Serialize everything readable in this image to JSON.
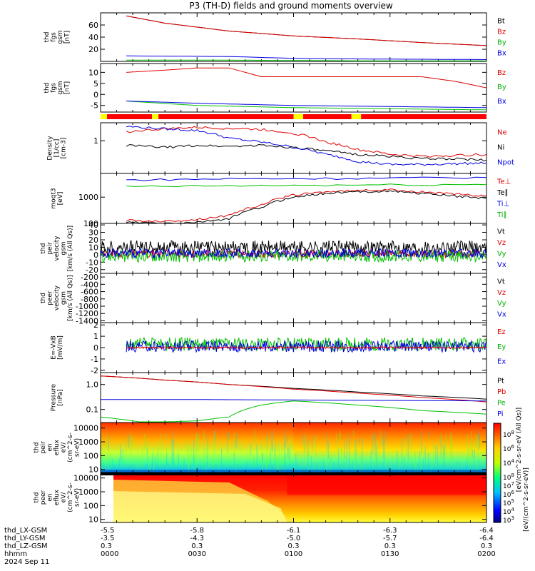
{
  "title": "P3 (TH-D) fields and ground moments overview",
  "chart_data": [
    {
      "type": "line",
      "panel": "fgs-gsm",
      "ylabel": [
        "thd",
        "fgs",
        "gsm",
        "[nT]"
      ],
      "yticks": [
        "20",
        "40",
        "60"
      ],
      "ylim": [
        0,
        80
      ],
      "legend_placement": "right",
      "legend": [
        "Bt",
        "Bz",
        "By",
        "Bx"
      ],
      "series": [
        {
          "name": "Bt",
          "color": "#000000",
          "x": [
            8,
            20,
            40,
            60,
            80,
            100,
            120
          ],
          "y": [
            75,
            63,
            50,
            42,
            37,
            31,
            26
          ]
        },
        {
          "name": "Bz",
          "color": "#e00000",
          "x": [
            8,
            20,
            40,
            60,
            80,
            100,
            120
          ],
          "y": [
            75,
            63,
            50,
            42,
            37,
            31,
            26
          ]
        },
        {
          "name": "By",
          "color": "#00c000",
          "x": [
            8,
            40,
            80,
            120
          ],
          "y": [
            2,
            2,
            1,
            1
          ]
        },
        {
          "name": "Bx",
          "color": "#0000e0",
          "x": [
            8,
            40,
            60,
            80,
            120
          ],
          "y": [
            9,
            8,
            5,
            4,
            3
          ]
        }
      ]
    },
    {
      "type": "line",
      "panel": "fgs-gsm-zoom",
      "ylabel": [
        "thd",
        "fgs",
        "gsm",
        "[nT]"
      ],
      "yticks": [
        "-5",
        "0",
        "5",
        "10"
      ],
      "ylim": [
        -8,
        14
      ],
      "legend_placement": "right",
      "legend": [
        "Bz",
        "By",
        "Bx"
      ],
      "series": [
        {
          "name": "Bz",
          "color": "#e00000",
          "x": [
            8,
            20,
            30,
            40,
            50,
            60,
            80,
            100,
            110,
            120
          ],
          "y": [
            10,
            11,
            12,
            12,
            8,
            8,
            8,
            8,
            6,
            3
          ]
        },
        {
          "name": "By",
          "color": "#00c000",
          "x": [
            8,
            30,
            60,
            90,
            120
          ],
          "y": [
            -3,
            -5,
            -6,
            -6.5,
            -7
          ]
        },
        {
          "name": "Bx",
          "color": "#0000e0",
          "x": [
            8,
            30,
            60,
            90,
            120
          ],
          "y": [
            -3,
            -4,
            -5,
            -5.5,
            -6
          ]
        }
      ]
    },
    {
      "type": "line",
      "panel": "density",
      "ylabel": [
        "Density",
        "[1/cc]",
        "[cm-3]"
      ],
      "yticks": [
        "1"
      ],
      "scale": "log",
      "ylim": [
        0.08,
        4
      ],
      "legend_placement": "right",
      "legend": [
        "Ne",
        "Ni",
        "Npot"
      ],
      "series": [
        {
          "name": "Ne",
          "color": "#e00000",
          "x": [
            8,
            20,
            30,
            40,
            50,
            60,
            70,
            80,
            90,
            100,
            110,
            120
          ],
          "y": [
            2.0,
            2.5,
            2.8,
            2.6,
            2.4,
            1.8,
            0.9,
            0.5,
            0.35,
            0.3,
            0.32,
            0.35
          ]
        },
        {
          "name": "Ni",
          "color": "#000000",
          "x": [
            8,
            20,
            30,
            40,
            50,
            60,
            70,
            80,
            90,
            100,
            110,
            120
          ],
          "y": [
            0.7,
            0.6,
            0.7,
            0.65,
            0.7,
            0.6,
            0.45,
            0.35,
            0.3,
            0.25,
            0.25,
            0.22
          ]
        },
        {
          "name": "Npot",
          "color": "#0000e0",
          "x": [
            8,
            20,
            30,
            40,
            50,
            60,
            70,
            80,
            90,
            100,
            110,
            120
          ],
          "y": [
            3.0,
            2.5,
            2.2,
            1.2,
            0.9,
            0.6,
            0.35,
            0.2,
            0.16,
            0.16,
            0.17,
            0.18
          ]
        }
      ]
    },
    {
      "type": "line",
      "panel": "temperature",
      "ylabel": [
        "moqt3",
        "[eV]"
      ],
      "yticks": [
        "100",
        "1000"
      ],
      "scale": "log",
      "ylim": [
        100,
        8000
      ],
      "legend_placement": "right",
      "legend": [
        "Te⊥",
        "Te∥",
        "Ti⊥",
        "Ti∥"
      ],
      "series": [
        {
          "name": "Te⊥",
          "color": "#e00000",
          "x": [
            8,
            20,
            30,
            40,
            50,
            60,
            70,
            80,
            90,
            100,
            110,
            120
          ],
          "y": [
            130,
            120,
            140,
            200,
            500,
            1200,
            1600,
            1800,
            1900,
            1600,
            1300,
            1100
          ]
        },
        {
          "name": "Te∥",
          "color": "#000000",
          "x": [
            8,
            20,
            30,
            40,
            50,
            60,
            70,
            80,
            90,
            100,
            110,
            120
          ],
          "y": [
            110,
            100,
            110,
            150,
            400,
            1000,
            1400,
            1600,
            1700,
            1400,
            1100,
            900
          ]
        },
        {
          "name": "Ti⊥",
          "color": "#0000e0",
          "x": [
            8,
            40,
            80,
            120
          ],
          "y": [
            4500,
            5000,
            5200,
            5600
          ]
        },
        {
          "name": "Ti∥",
          "color": "#00c000",
          "x": [
            8,
            40,
            80,
            120
          ],
          "y": [
            2500,
            2700,
            2900,
            3000
          ]
        }
      ]
    },
    {
      "type": "line",
      "panel": "ion-velocity",
      "ylabel": [
        "thd",
        "peir",
        "velocity",
        "gsm",
        "[km/s (All Qs)]"
      ],
      "yticks": [
        "-20",
        "-10",
        "0",
        "10",
        "20",
        "30",
        "40"
      ],
      "ylim": [
        -25,
        42
      ],
      "legend_placement": "right",
      "legend": [
        "Vt",
        "Vz",
        "Vy",
        "Vx"
      ],
      "series": [
        {
          "name": "Vt",
          "color": "#000000",
          "mean": 10,
          "noise": 9
        },
        {
          "name": "Vz",
          "color": "#e00000",
          "mean": 1,
          "noise": 5
        },
        {
          "name": "Vy",
          "color": "#00c000",
          "mean": -2,
          "noise": 8
        },
        {
          "name": "Vx",
          "color": "#0000e0",
          "mean": 2,
          "noise": 6
        }
      ]
    },
    {
      "type": "line",
      "panel": "electron-velocity",
      "ylabel": [
        "thd",
        "peer",
        "velocity",
        "gsm",
        "[km/s (All Qs)]"
      ],
      "yticks": [
        "-1400",
        "-1200",
        "-1000",
        "-800",
        "-600",
        "-400",
        "-200"
      ],
      "ylim": [
        -1450,
        -100
      ],
      "legend_placement": "right",
      "legend": [
        "Vt",
        "Vz",
        "Vy",
        "Vx"
      ],
      "series": []
    },
    {
      "type": "line",
      "panel": "efield",
      "ylabel": [
        "E=-VxB",
        "[mV/m]"
      ],
      "yticks": [
        "-2",
        "-1",
        "0",
        "1",
        "2"
      ],
      "ylim": [
        -2.2,
        2.2
      ],
      "legend_placement": "right",
      "legend": [
        "Ez",
        "Ey",
        "Ex"
      ],
      "series": [
        {
          "name": "Ey",
          "color": "#00c000",
          "mean": 0.3,
          "noise": 0.6
        },
        {
          "name": "Ex",
          "color": "#0000e0",
          "mean": 0.1,
          "noise": 0.5
        },
        {
          "name": "Ez",
          "color": "#e00000",
          "mean": 0,
          "noise": 0.08
        }
      ]
    },
    {
      "type": "line",
      "panel": "pressure",
      "ylabel": [
        "Pressure",
        "[nPa]"
      ],
      "yticks": [
        "0.1",
        "1.0"
      ],
      "scale": "log",
      "ylim": [
        0.03,
        3.0
      ],
      "legend_placement": "right",
      "legend": [
        "Pt",
        "Pb",
        "Pe",
        "Pi"
      ],
      "series": [
        {
          "name": "Pt",
          "color": "#000000",
          "x": [
            0,
            20,
            40,
            60,
            80,
            100,
            120
          ],
          "y": [
            2.2,
            1.5,
            1.0,
            0.7,
            0.5,
            0.35,
            0.26
          ]
        },
        {
          "name": "Pb",
          "color": "#e00000",
          "x": [
            0,
            20,
            40,
            60,
            80,
            100,
            120
          ],
          "y": [
            2.2,
            1.5,
            1.0,
            0.65,
            0.45,
            0.3,
            0.2
          ]
        },
        {
          "name": "Pe",
          "color": "#0000e0",
          "x": [
            0,
            30,
            60,
            90,
            120
          ],
          "y": [
            0.25,
            0.25,
            0.24,
            0.23,
            0.22
          ]
        },
        {
          "name": "Pi",
          "color": "#00c000",
          "x": [
            0,
            10,
            12,
            20,
            30,
            40,
            50,
            60,
            80,
            100,
            120
          ],
          "y": [
            0.05,
            0.035,
            0.032,
            0.032,
            0.035,
            0.05,
            0.15,
            0.22,
            0.15,
            0.09,
            0.065
          ]
        }
      ]
    },
    {
      "type": "heatmap",
      "panel": "ion-energy-flux",
      "ylabel": [
        "thd",
        "peir",
        "en",
        "eflux",
        "eV/",
        "(cm^2-s-",
        "sr-eV)"
      ],
      "yticks": [
        "10",
        "100",
        "1000",
        "10000"
      ]
    },
    {
      "type": "heatmap",
      "panel": "electron-energy-flux",
      "ylabel": [
        "thd",
        "peer",
        "en",
        "eflux",
        "eV/",
        "(cm^2-s-",
        "sr-eV)"
      ],
      "yticks": [
        "10",
        "100",
        "1000",
        "10000"
      ]
    }
  ],
  "status_bar": {
    "segments": [
      {
        "from": 0,
        "to": 2,
        "color": "#ffff00"
      },
      {
        "from": 2,
        "to": 16,
        "color": "#ff0000"
      },
      {
        "from": 16,
        "to": 18,
        "color": "#ffff00"
      },
      {
        "from": 18,
        "to": 60,
        "color": "#ff0000"
      },
      {
        "from": 60,
        "to": 63,
        "color": "#ffff00"
      },
      {
        "from": 63,
        "to": 78,
        "color": "#ff0000"
      },
      {
        "from": 78,
        "to": 81,
        "color": "#ffff00"
      },
      {
        "from": 81,
        "to": 120,
        "color": "#ff0000"
      }
    ]
  },
  "colorbar": {
    "ion_ticks": [
      "10^8",
      "10^6",
      "10^4"
    ],
    "electron_ticks": [
      "10^8",
      "10^7",
      "10^6",
      "10^5",
      "10^4",
      "10^3"
    ],
    "label": "[eV/(cm^2-s-sr-eV)]",
    "label2": "[eV/cm^2-s-sr-eV (All Qs)]"
  },
  "xaxis": {
    "rows": [
      {
        "label": "thd_LX-GSM",
        "values": [
          "-5.5",
          "-5.8",
          "-6.1",
          "-6.3",
          "-6.4"
        ]
      },
      {
        "label": "thd_LY-GSM",
        "values": [
          "-3.5",
          "-4.3",
          "-5.0",
          "-5.7",
          "-6.4"
        ]
      },
      {
        "label": "thd_LZ-GSM",
        "values": [
          "0.3",
          "0.3",
          "0.3",
          "0.3",
          "0.3"
        ]
      },
      {
        "label": "hhmm",
        "values": [
          "0000",
          "0030",
          "0100",
          "0130",
          "0200"
        ]
      }
    ],
    "date": "2024 Sep 11",
    "xlim": [
      0,
      120
    ]
  }
}
